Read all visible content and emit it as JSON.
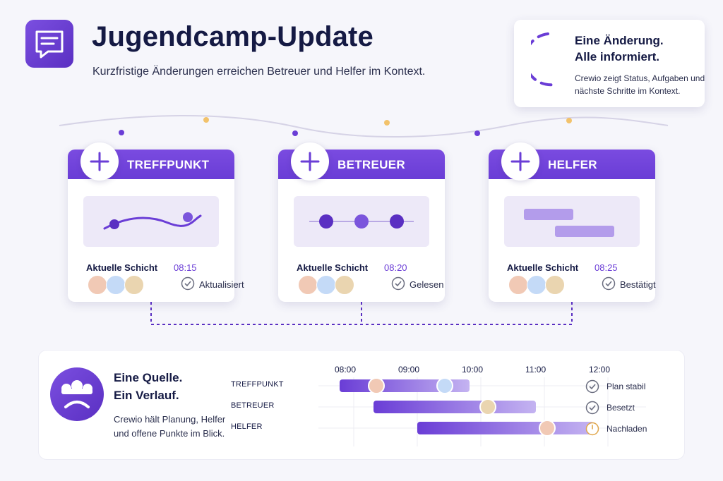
{
  "header": {
    "title": "Jugendcamp-Update",
    "subtitle": "Kurzfristige Änderungen erreichen Betreuer und Helfer im Kontext.",
    "logo_icon": "chat-bubble-icon"
  },
  "info_card": {
    "title_line1": "Eine Änderung.",
    "title_line2": "Alle informiert.",
    "text": "Crewio zeigt Status, Aufgaben und nächste Schritte im Kontext."
  },
  "cards": [
    {
      "title": "TREFFPUNKT",
      "shift_label": "Aktuelle Schicht",
      "time": "08:15",
      "status": "Aktualisiert"
    },
    {
      "title": "BETREUER",
      "shift_label": "Aktuelle Schicht",
      "time": "08:20",
      "status": "Gelesen"
    },
    {
      "title": "HELFER",
      "shift_label": "Aktuelle Schicht",
      "time": "08:25",
      "status": "Bestätigt"
    }
  ],
  "source": {
    "title_line1": "Eine Quelle.",
    "title_line2": "Ein Verlauf.",
    "text_line1": "Crewio hält Planung, Helfer",
    "text_line2": "und offene Punkte im Blick."
  },
  "timeline": {
    "hours": [
      "08:00",
      "09:00",
      "10:00",
      "11:00",
      "12:00"
    ],
    "rows": [
      {
        "label": "TREFFPUNKT",
        "status": "Plan stabil",
        "status_icon": "check-icon"
      },
      {
        "label": "BETREUER",
        "status": "Besetzt",
        "status_icon": "check-icon"
      },
      {
        "label": "HELFER",
        "status": "Nachladen",
        "status_icon": "clock-icon"
      }
    ]
  },
  "colors": {
    "accent": "#6a3dd6",
    "accent_light": "#b9a5ef",
    "avatar_peach": "#f1c9b5",
    "avatar_blue": "#c4daf7",
    "avatar_sand": "#ead5b0",
    "dot_yellow": "#f2c26b"
  }
}
